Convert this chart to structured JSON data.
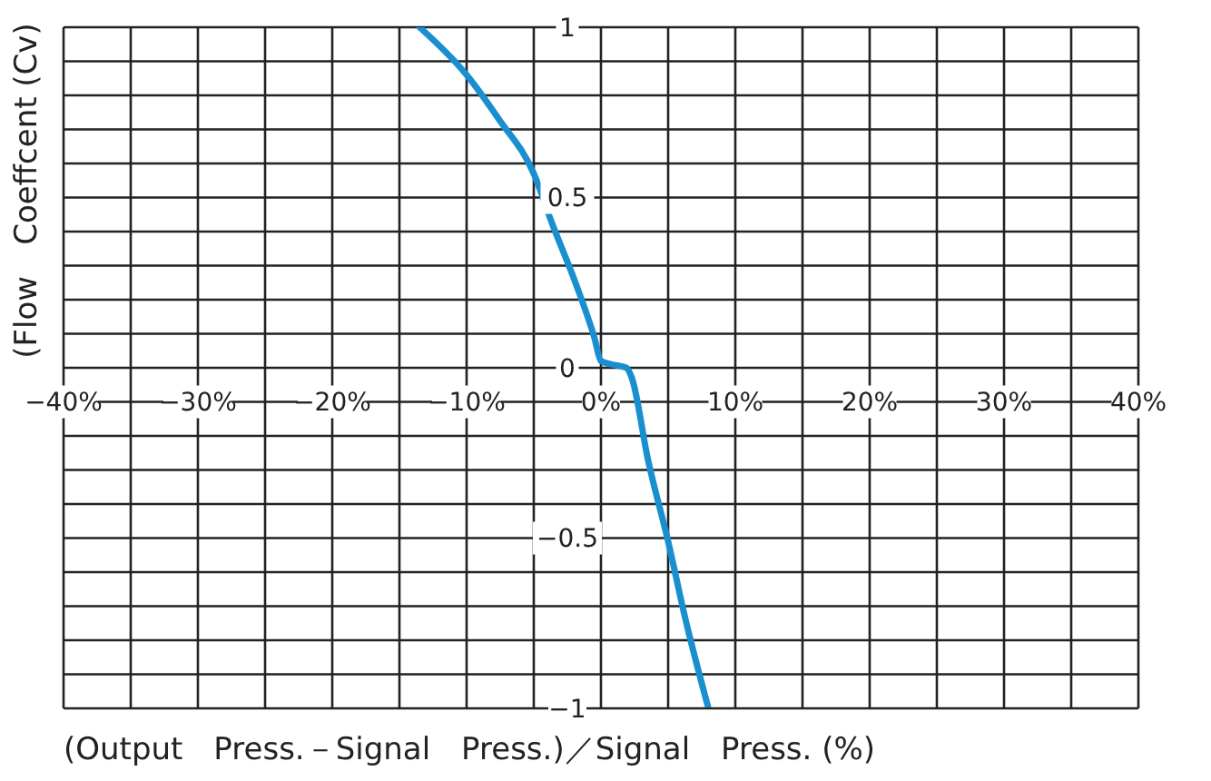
{
  "chart_data": {
    "type": "line",
    "xlabel": "(Output　Press.－Signal　Press.)／Signal　Press. (%)",
    "ylabel": "(Flow　Coeffcent (Cv)",
    "x": [
      -13.5,
      -10.0,
      -7.6,
      -5.0,
      -3.6,
      -1.9,
      -0.5,
      0,
      0.8,
      1.9,
      2.3,
      3.5,
      5.0,
      6.3,
      8.0
    ],
    "series": [
      {
        "color": "#1a8fd0",
        "values": [
          1,
          0.86,
          0.73,
          0.57,
          0.42,
          0.25,
          0.09,
          0.02,
          0.01,
          0,
          -0.03,
          -0.27,
          -0.51,
          -0.74,
          -1
        ]
      }
    ],
    "xlim": [
      -40,
      40
    ],
    "xticks": [
      {
        "value": -40,
        "label": "−40%"
      },
      {
        "value": -35,
        "label": null
      },
      {
        "value": -30,
        "label": "−30%"
      },
      {
        "value": -25,
        "label": null
      },
      {
        "value": -20,
        "label": "−20%"
      },
      {
        "value": -15,
        "label": null
      },
      {
        "value": -10,
        "label": "−10%"
      },
      {
        "value": -5,
        "label": null
      },
      {
        "value": 0,
        "label": "0%"
      },
      {
        "value": 5,
        "label": null
      },
      {
        "value": 10,
        "label": "10%"
      },
      {
        "value": 15,
        "label": null
      },
      {
        "value": 20,
        "label": "20%"
      },
      {
        "value": 25,
        "label": null
      },
      {
        "value": 30,
        "label": "30%"
      },
      {
        "value": 35,
        "label": null
      },
      {
        "value": 40,
        "label": "40%"
      }
    ],
    "ylim": [
      -1,
      1
    ],
    "yticks": [
      {
        "value": -1,
        "label": "−1"
      },
      {
        "value": -0.9,
        "label": null
      },
      {
        "value": -0.8,
        "label": null
      },
      {
        "value": -0.7,
        "label": null
      },
      {
        "value": -0.6,
        "label": null
      },
      {
        "value": -0.5,
        "label": "−0.5"
      },
      {
        "value": -0.4,
        "label": null
      },
      {
        "value": -0.3,
        "label": null
      },
      {
        "value": -0.2,
        "label": null
      },
      {
        "value": -0.1,
        "label": null
      },
      0,
      {
        "value": 0.1,
        "label": null
      },
      {
        "value": 0.2,
        "label": null
      },
      {
        "value": 0.3,
        "label": null
      },
      {
        "value": 0.4,
        "label": null
      },
      0.5,
      {
        "value": 0.6,
        "label": null
      },
      {
        "value": 0.7,
        "label": null
      },
      {
        "value": 0.8,
        "label": null
      },
      {
        "value": 0.9,
        "label": null
      },
      1
    ],
    "grid": true,
    "marker": "none",
    "line_style": "solid"
  }
}
